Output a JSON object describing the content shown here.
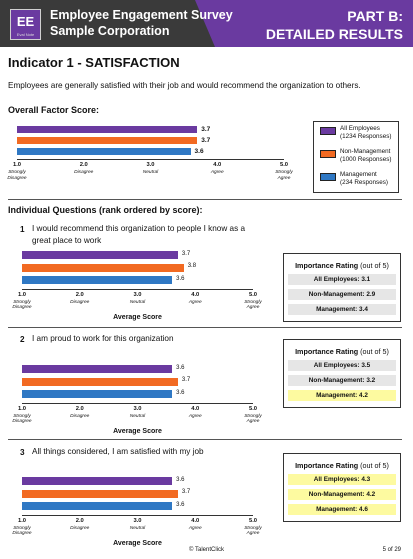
{
  "header": {
    "logo_text": "EE",
    "logo_sub": "Eval Note",
    "title_line1": "Employee Engagement Survey",
    "title_line2": "Sample Corporation",
    "part_line1": "PART B:",
    "part_line2": "DETAILED RESULTS"
  },
  "indicator": {
    "title": "Indicator 1 -  SATISFACTION",
    "description": "Employees are generally satisfied with their job and would recommend the organization to others."
  },
  "overall": {
    "heading": "Overall Factor Score:",
    "values": [
      "3.7",
      "3.7",
      "3.6"
    ]
  },
  "scale": {
    "ticks": [
      "1.0",
      "2.0",
      "3.0",
      "4.0",
      "5.0"
    ],
    "tick_labels_overall": [
      "Strongly\nDisagree",
      "Disagree",
      "Neutral",
      "Agree",
      "Strongly\nAgree"
    ],
    "axis_title": "Average Score"
  },
  "legend": {
    "items": [
      {
        "line1": "All Employees",
        "line2": "(1234 Responses)",
        "color": "#6a3aa0"
      },
      {
        "line1": "Non-Management",
        "line2": "(1000 Responses)",
        "color": "#f26a22"
      },
      {
        "line1": "Management",
        "line2": "(234 Responses)",
        "color": "#2f78c4"
      }
    ]
  },
  "individual": {
    "heading": "Individual Questions (rank ordered by score):"
  },
  "questions": [
    {
      "num": "1",
      "text_line1": "I would recommend this organization to people I know as a",
      "text_line2": "great place to work",
      "values": [
        "3.7",
        "3.8",
        "3.6"
      ],
      "importance": {
        "title_bold": "Importance Rating",
        "title_rest": " (out of 5)",
        "rows": [
          "All Employees: 3.1",
          "Non-Management: 2.9",
          "Management: 3.4"
        ],
        "highlight": [
          false,
          false,
          false
        ]
      }
    },
    {
      "num": "2",
      "text_line1": "I am proud to work for this organization",
      "text_line2": "",
      "values": [
        "3.6",
        "3.7",
        "3.6"
      ],
      "importance": {
        "title_bold": "Importance Rating",
        "title_rest": " (out of 5)",
        "rows": [
          "All Employees: 3.5",
          "Non-Management: 3.2",
          "Management: 4.2"
        ],
        "highlight": [
          false,
          false,
          true
        ]
      }
    },
    {
      "num": "3",
      "text_line1": "All things considered, I am satisfied with my job",
      "text_line2": "",
      "values": [
        "3.6",
        "3.7",
        "3.6"
      ],
      "importance": {
        "title_bold": "Importance Rating",
        "title_rest": " (out of 5)",
        "rows": [
          "All Employees: 4.3",
          "Non-Management: 4.2",
          "Management: 4.6"
        ],
        "highlight": [
          true,
          true,
          true
        ]
      }
    }
  ],
  "footer": {
    "copyright": "© TalentClick",
    "page": "5 of 29"
  },
  "colors": {
    "purple": "#6a3aa0",
    "orange": "#f26a22",
    "blue": "#2f78c4",
    "highlight": "#fdfaa0"
  }
}
